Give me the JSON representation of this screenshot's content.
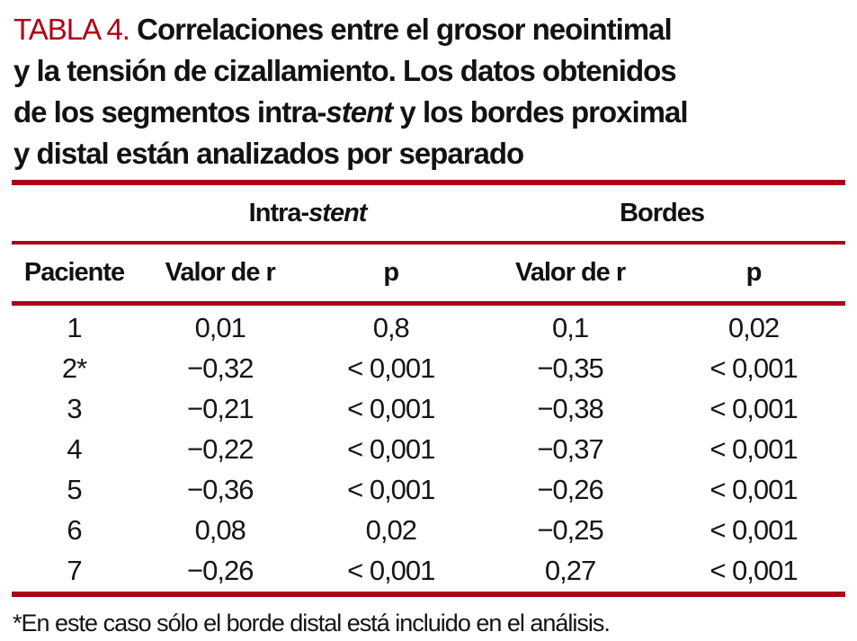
{
  "title": {
    "tag": "TABLA 4.",
    "line1_rest": " Correlaciones entre el grosor neointimal",
    "line2": "y la tensión de cizallamiento. Los datos obtenidos",
    "line3_pre": "de los segmentos intra-",
    "line3_italic": "stent",
    "line3_post": " y los bordes proximal",
    "line4": "y distal están analizados por separado"
  },
  "table": {
    "groups": [
      {
        "pre": "Intra-",
        "italic": "stent"
      },
      {
        "label": "Bordes"
      }
    ],
    "column_headers": [
      "Paciente",
      "Valor de r",
      "p",
      "Valor de r",
      "p"
    ],
    "rows": [
      [
        "1",
        "0,01",
        "0,8",
        "0,1",
        "0,02"
      ],
      [
        "2*",
        "−0,32",
        "< 0,001",
        "−0,35",
        "< 0,001"
      ],
      [
        "3",
        "−0,21",
        "< 0,001",
        "−0,38",
        "< 0,001"
      ],
      [
        "4",
        "−0,22",
        "< 0,001",
        "−0,37",
        "< 0,001"
      ],
      [
        "5",
        "−0,36",
        "< 0,001",
        "−0,26",
        "< 0,001"
      ],
      [
        "6",
        "0,08",
        "0,02",
        "−0,25",
        "< 0,001"
      ],
      [
        "7",
        "−0,26",
        "< 0,001",
        "0,27",
        "< 0,001"
      ]
    ]
  },
  "footnote": "*En este caso sólo el borde distal está incluido en el análisis.",
  "colors": {
    "accent_red": "#b00018",
    "rule_red": "#ab0017",
    "text_black": "#121212"
  }
}
